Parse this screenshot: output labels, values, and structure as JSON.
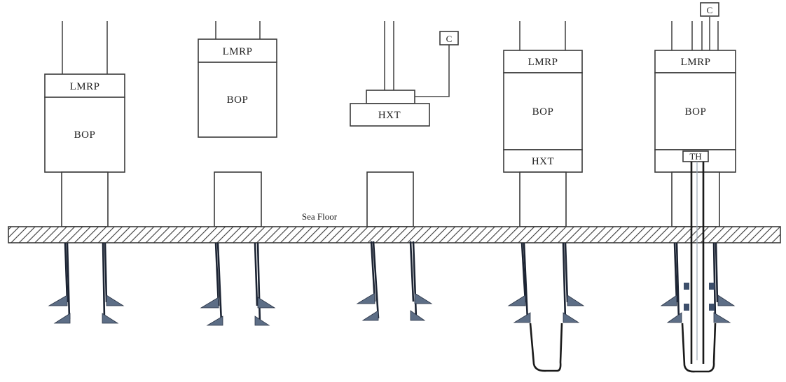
{
  "labels": {
    "lmrp": "LMRP",
    "bop": "BOP",
    "hxt": "HXT",
    "th": "TH",
    "control": "C",
    "sea_floor": "Sea Floor"
  },
  "colors": {
    "outline": "#3a3a3a",
    "casing": "#1c2433",
    "fin": "#5d6e86",
    "hatch": "#3a3a3a"
  },
  "icons": {
    "seabed": "hatched-seabed",
    "casing_fin": "triangle-fin"
  }
}
